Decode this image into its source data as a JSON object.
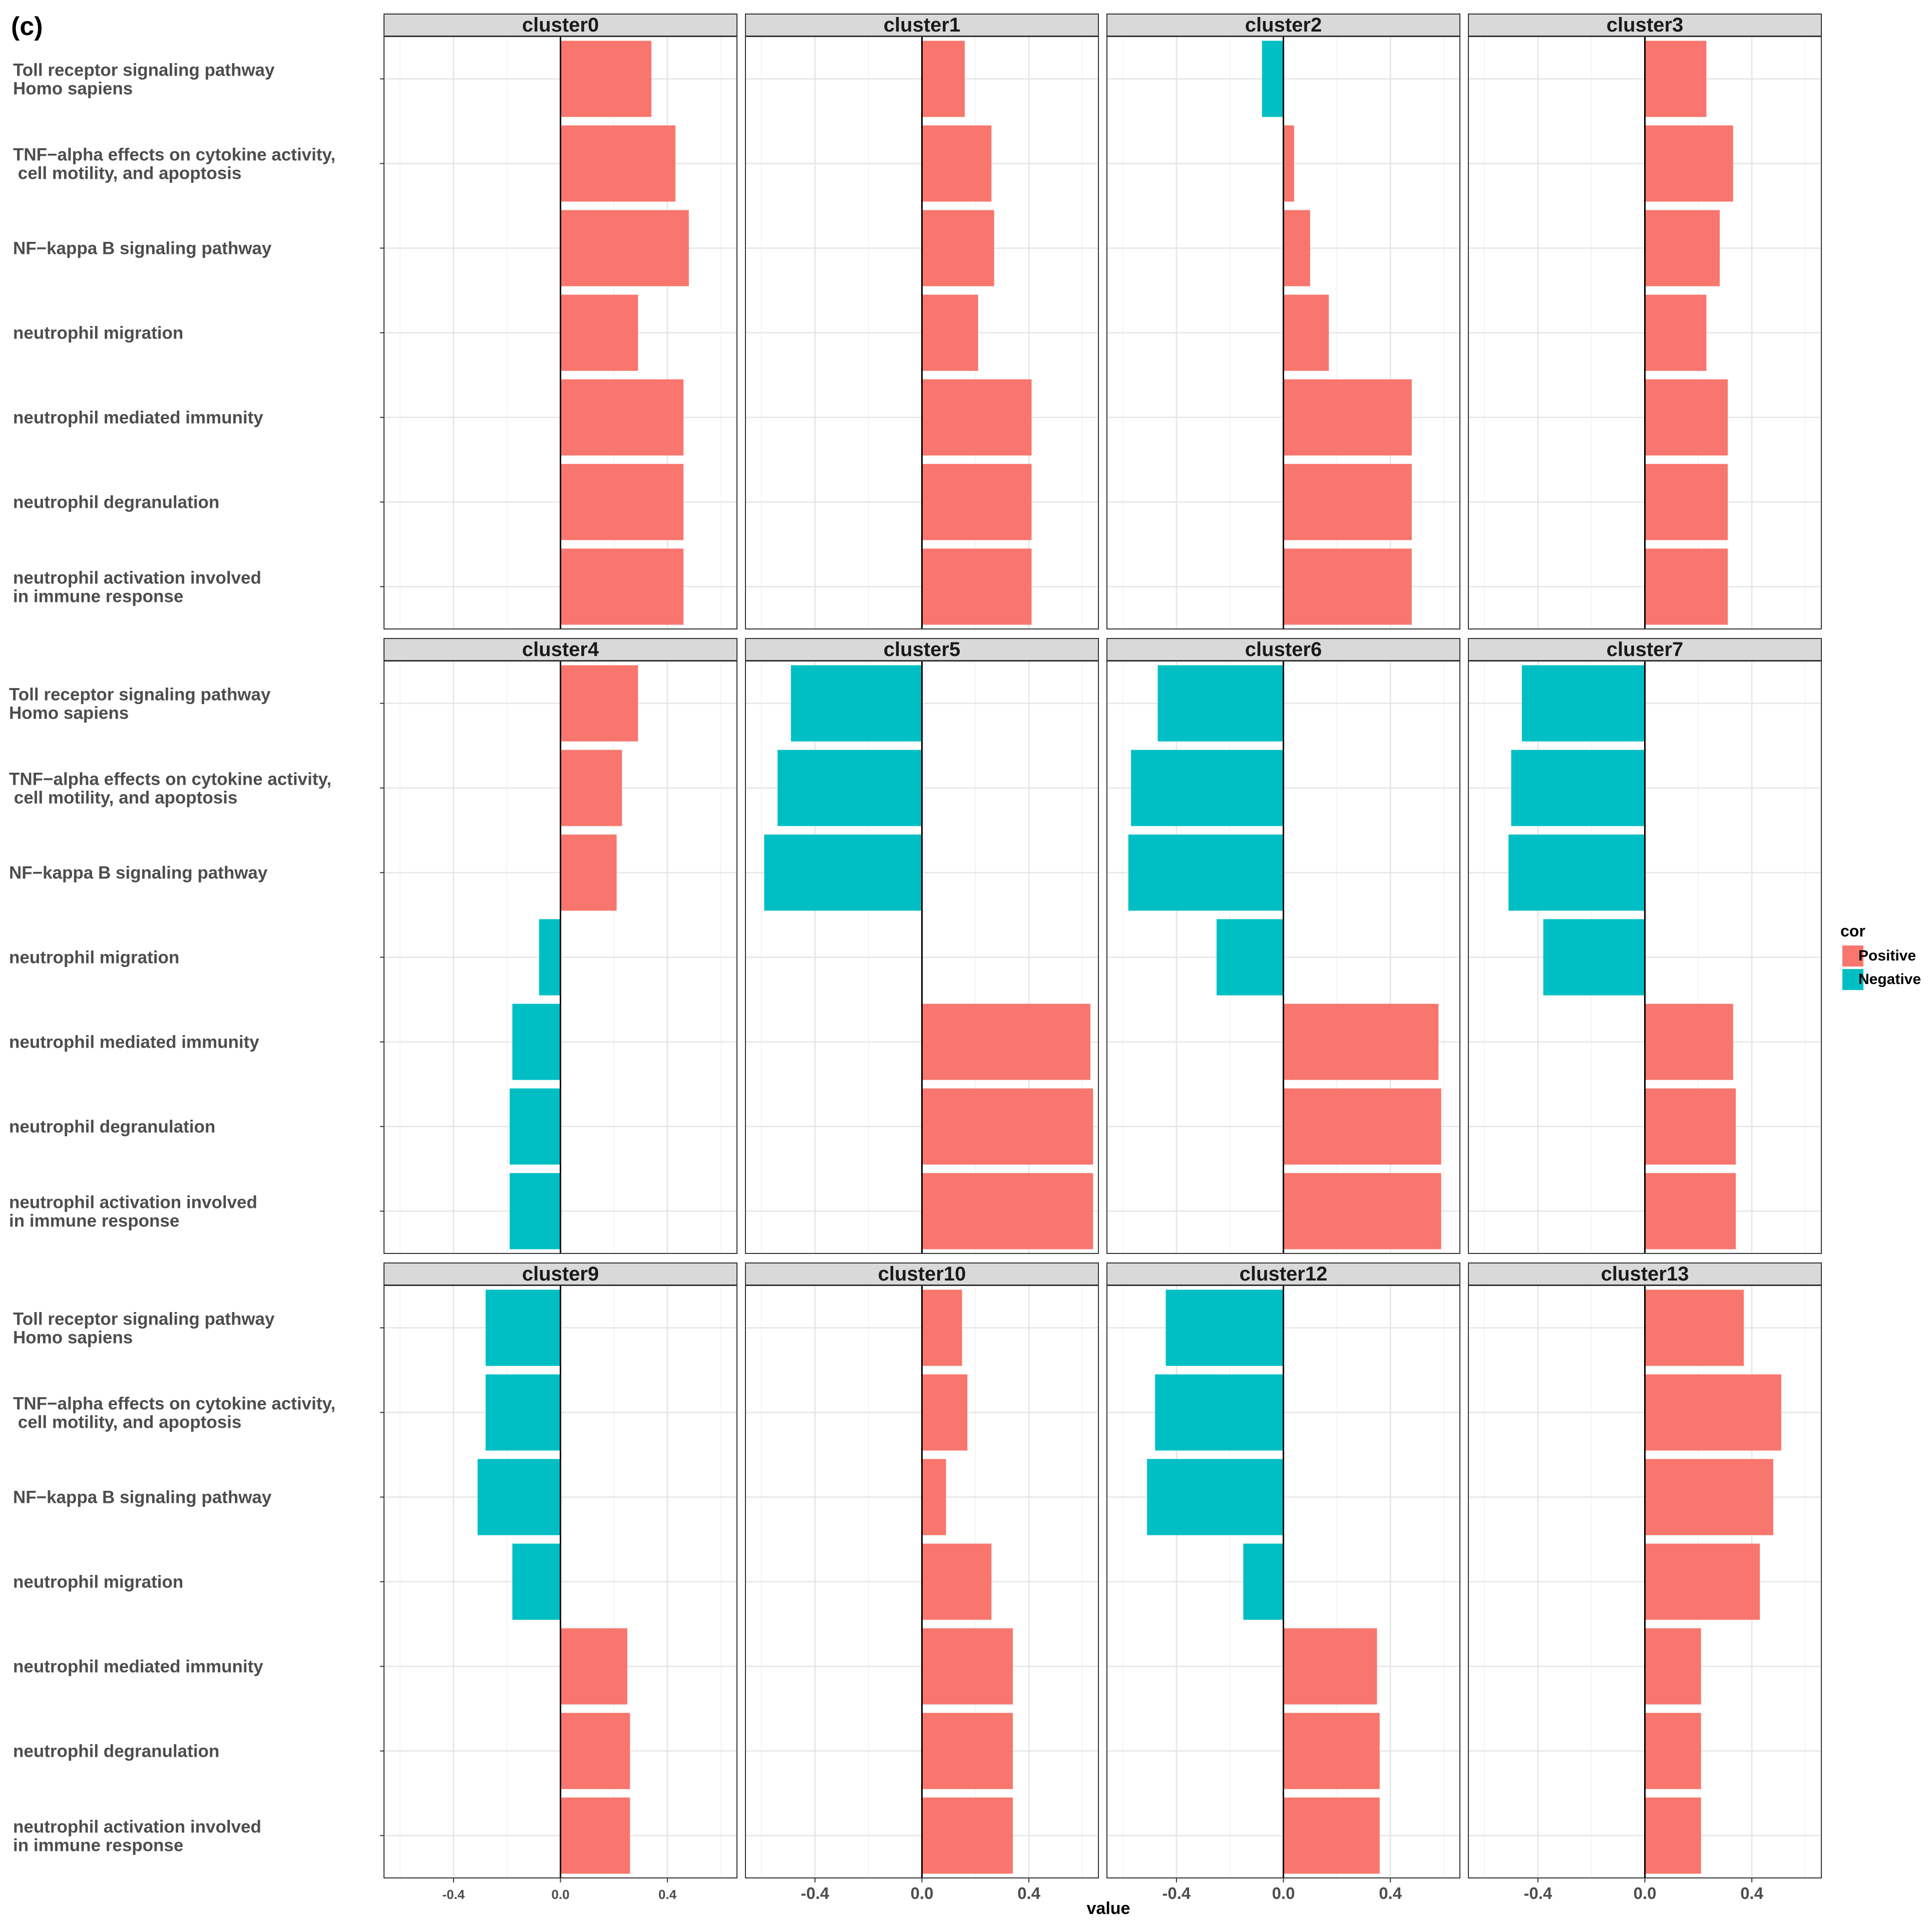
{
  "figure_label": "(c)",
  "legend": {
    "title": "cor",
    "items": [
      {
        "name": "Positive",
        "color": "#F8766D"
      },
      {
        "name": "Negative",
        "color": "#00BFC4"
      }
    ],
    "placement": "right"
  },
  "chart_data": {
    "type": "bar",
    "orientation": "horizontal",
    "xlabel": "value",
    "ylabel": "",
    "xlim": [
      -0.66,
      0.66
    ],
    "x_ticks": [
      -0.4,
      0.0,
      0.4
    ],
    "x_tick_labels_per_column": [
      [
        "-0.4",
        "0.0",
        "0.4"
      ],
      [
        "-0.4",
        "0.0",
        "0.4"
      ],
      [
        "-0.4",
        "0.0",
        "0.4"
      ],
      [
        "-0.4",
        "0.0",
        "0.4"
      ]
    ],
    "grid": true,
    "categories": [
      "Toll receptor signaling pathway Homo sapiens",
      "TNF-alpha effects on cytokine activity, cell motility, and apoptosis",
      "NF-kappa B signaling pathway",
      "neutrophil migration",
      "neutrophil mediated immunity",
      "neutrophil degranulation",
      "neutrophil activation involved in immune response"
    ],
    "row_category_labels": [
      [
        [
          "Toll receptor signaling pathway",
          "Homo sapiens"
        ],
        [
          "TNF−alpha effects on cytokine activity,",
          " cell motility, and apoptosis"
        ],
        [
          "NF−kappa B signaling pathway"
        ],
        [
          "neutrophil migration"
        ],
        [
          "neutrophil mediated immunity"
        ],
        [
          "neutrophil degranulation"
        ],
        [
          "neutrophil activation involved",
          "in immune response"
        ]
      ],
      [
        [
          "Toll receptor signaling pathway",
          "Homo sapiens"
        ],
        [
          "TNF−alpha effects on cytokine activity,",
          " cell motility, and apoptosis"
        ],
        [
          "NF−kappa B signaling pathway"
        ],
        [
          "neutrophil migration"
        ],
        [
          "neutrophil mediated immunity"
        ],
        [
          "neutrophil degranulation"
        ],
        [
          "neutrophil activation involved",
          "in immune response"
        ]
      ],
      [
        [
          "Toll receptor signaling pathway",
          "Homo sapiens"
        ],
        [
          "TNF−alpha effects on cytokine activity,",
          " cell motility, and apoptosis"
        ],
        [
          "NF−kappa B signaling pathway"
        ],
        [
          "neutrophil migration"
        ],
        [
          "neutrophil mediated immunity"
        ],
        [
          "neutrophil degranulation"
        ],
        [
          "neutrophil activation involved",
          "in immune response"
        ]
      ]
    ],
    "series": [
      {
        "name": "cluster0",
        "values": [
          0.34,
          0.43,
          0.48,
          0.29,
          0.46,
          0.46,
          0.46
        ]
      },
      {
        "name": "cluster1",
        "values": [
          0.16,
          0.26,
          0.27,
          0.21,
          0.41,
          0.41,
          0.41
        ]
      },
      {
        "name": "cluster2",
        "values": [
          -0.08,
          0.04,
          0.1,
          0.17,
          0.48,
          0.48,
          0.48
        ]
      },
      {
        "name": "cluster3",
        "values": [
          0.23,
          0.33,
          0.28,
          0.23,
          0.31,
          0.31,
          0.31
        ]
      },
      {
        "name": "cluster4",
        "values": [
          0.29,
          0.23,
          0.21,
          -0.08,
          -0.18,
          -0.19,
          -0.19
        ]
      },
      {
        "name": "cluster5",
        "values": [
          -0.49,
          -0.54,
          -0.59,
          0.0,
          0.63,
          0.64,
          0.64
        ]
      },
      {
        "name": "cluster6",
        "values": [
          -0.47,
          -0.57,
          -0.58,
          -0.25,
          0.58,
          0.59,
          0.59
        ]
      },
      {
        "name": "cluster7",
        "values": [
          -0.46,
          -0.5,
          -0.51,
          -0.38,
          0.33,
          0.34,
          0.34
        ]
      },
      {
        "name": "cluster9",
        "values": [
          -0.28,
          -0.28,
          -0.31,
          -0.18,
          0.25,
          0.26,
          0.26
        ]
      },
      {
        "name": "cluster10",
        "values": [
          0.15,
          0.17,
          0.09,
          0.26,
          0.34,
          0.34,
          0.34
        ]
      },
      {
        "name": "cluster12",
        "values": [
          -0.44,
          -0.48,
          -0.51,
          -0.15,
          0.35,
          0.36,
          0.36
        ]
      },
      {
        "name": "cluster13",
        "values": [
          0.37,
          0.51,
          0.48,
          0.43,
          0.21,
          0.21,
          0.21
        ]
      }
    ]
  }
}
